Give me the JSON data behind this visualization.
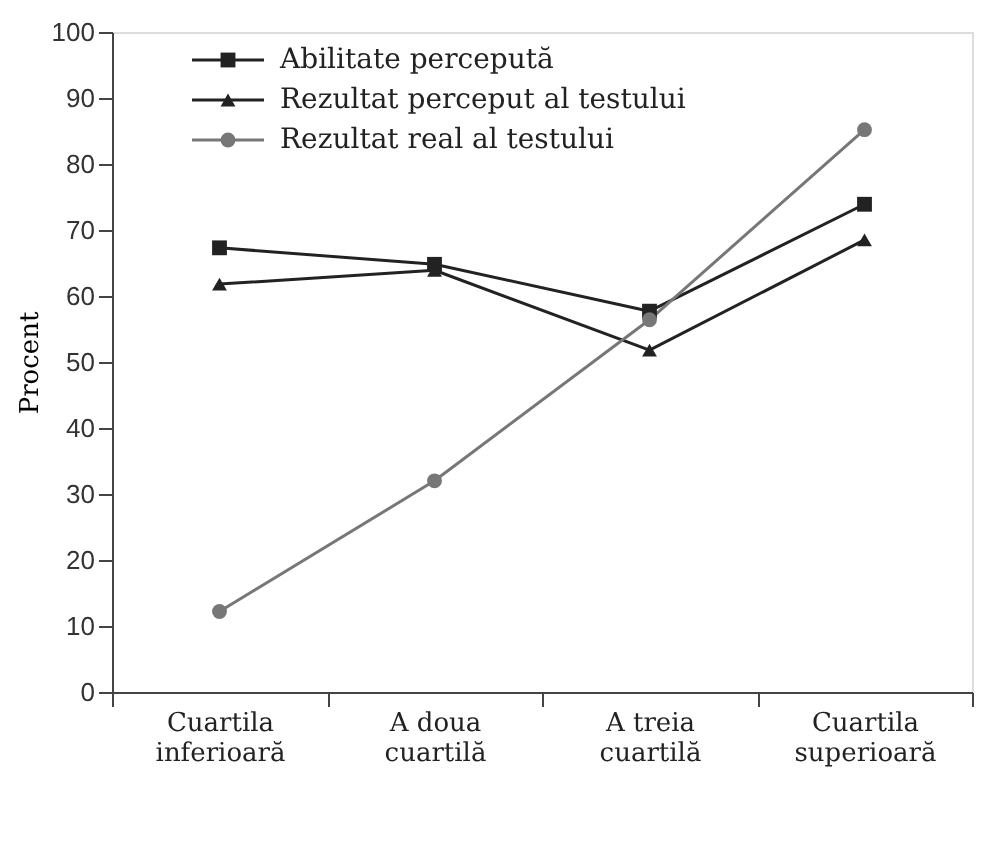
{
  "chart_data": {
    "type": "line",
    "ylabel": "Procent",
    "categories": [
      "Cuartila\ninferioară",
      "A doua\ncuartilă",
      "A treia\ncuartilă",
      "Cuartila\nsuperioară"
    ],
    "series": [
      {
        "name": "Abilitate percepută",
        "color": "#222222",
        "marker": "square",
        "values": [
          67.3,
          64.8,
          57.7,
          73.9
        ]
      },
      {
        "name": "Rezultat perceput al testului",
        "color": "#222222",
        "marker": "triangle",
        "values": [
          61.8,
          63.9,
          51.8,
          68.5
        ]
      },
      {
        "name": "Rezultat real al testului",
        "color": "#777777",
        "marker": "circle",
        "values": [
          12.2,
          32.0,
          56.4,
          85.2
        ]
      }
    ],
    "ylim": [
      0,
      100
    ],
    "yticks": [
      0,
      10,
      20,
      30,
      40,
      50,
      60,
      70,
      80,
      90,
      100
    ],
    "grid": false,
    "legend": "top left",
    "line_style": "solid"
  }
}
